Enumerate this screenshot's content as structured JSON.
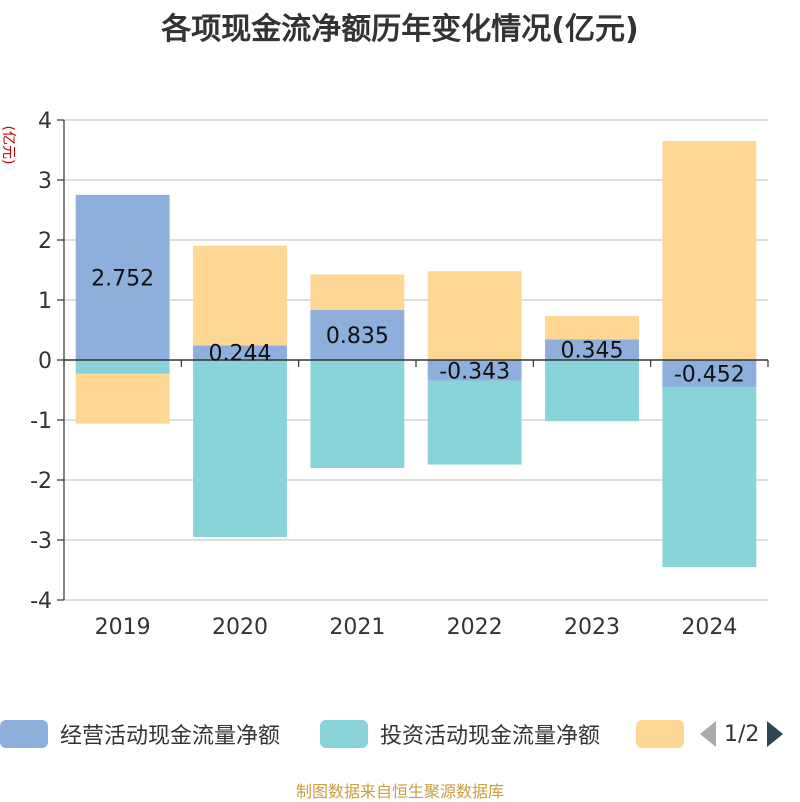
{
  "chart_data": {
    "type": "bar",
    "stacked": true,
    "title": "各项现金流净额历年变化情况(亿元)",
    "ylabel": "(亿元)",
    "ylim": [
      -4,
      4
    ],
    "yticks": [
      4,
      3,
      2,
      1,
      0,
      -1,
      -2,
      -3,
      -4
    ],
    "categories": [
      "2019",
      "2020",
      "2021",
      "2022",
      "2023",
      "2024"
    ],
    "series": [
      {
        "name": "经营活动现金流量净额",
        "color": "#8eaedb",
        "values": [
          2.752,
          0.244,
          0.835,
          -0.343,
          0.345,
          -0.452
        ],
        "labels": [
          "2.752",
          "0.244",
          "0.835",
          "-0.343",
          "0.345",
          "-0.452"
        ]
      },
      {
        "name": "投资活动现金流量净额",
        "color": "#88d4d8",
        "values": [
          -0.23,
          -2.95,
          -1.8,
          -1.4,
          -1.02,
          -3.0
        ]
      },
      {
        "name": "",
        "color": "#fed795",
        "values": [
          -0.83,
          1.66,
          0.59,
          1.48,
          0.39,
          3.65
        ]
      }
    ],
    "legend_position": "bottom",
    "pager": "1/2"
  },
  "source_note": "制图数据来自恒生聚源数据库"
}
